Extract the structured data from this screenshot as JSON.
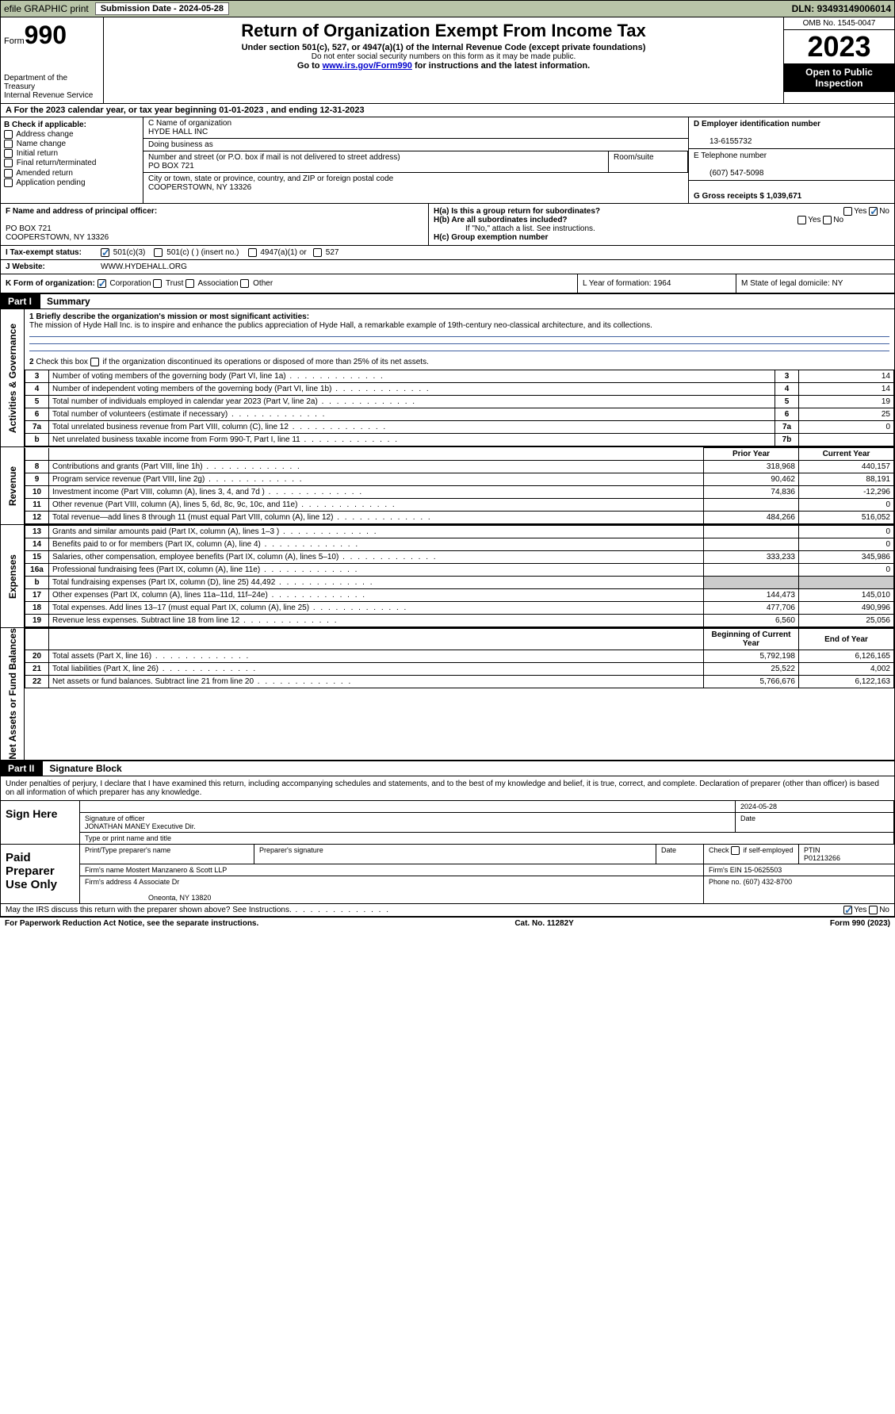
{
  "topbar": {
    "efile_label": "efile GRAPHIC print",
    "submission_label": "Submission Date - 2024-05-28",
    "dln_label": "DLN: 93493149006014"
  },
  "header": {
    "form_word": "Form",
    "form_num": "990",
    "dept": "Department of the Treasury\nInternal Revenue Service",
    "title": "Return of Organization Exempt From Income Tax",
    "sub1": "Under section 501(c), 527, or 4947(a)(1) of the Internal Revenue Code (except private foundations)",
    "sub2": "Do not enter social security numbers on this form as it may be made public.",
    "sub3_pre": "Go to ",
    "sub3_link": "www.irs.gov/Form990",
    "sub3_post": " for instructions and the latest information.",
    "omb": "OMB No. 1545-0047",
    "year": "2023",
    "inspect": "Open to Public Inspection"
  },
  "row_a": "A For the 2023 calendar year, or tax year beginning 01-01-2023     , and ending 12-31-2023",
  "col_b": {
    "hdr": "B Check if applicable:",
    "items": [
      "Address change",
      "Name change",
      "Initial return",
      "Final return/terminated",
      "Amended return",
      "Application pending"
    ]
  },
  "col_c": {
    "name_lbl": "C Name of organization",
    "name": "HYDE HALL INC",
    "dba_lbl": "Doing business as",
    "dba": "",
    "street_lbl": "Number and street (or P.O. box if mail is not delivered to street address)",
    "street": "PO BOX 721",
    "room_lbl": "Room/suite",
    "room": "",
    "city_lbl": "City or town, state or province, country, and ZIP or foreign postal code",
    "city": "COOPERSTOWN, NY  13326"
  },
  "col_d": {
    "ein_lbl": "D Employer identification number",
    "ein": "13-6155732",
    "tel_lbl": "E Telephone number",
    "tel": "(607) 547-5098",
    "gross_lbl": "G Gross receipts $ 1,039,671"
  },
  "f_block": {
    "f_lbl": "F  Name and address of principal officer:",
    "f_val": "PO BOX 721\nCOOPERSTOWN, NY  13326",
    "ha_lbl": "H(a)  Is this a group return for subordinates?",
    "ha_yes": "Yes",
    "ha_no": "No",
    "hb_lbl": "H(b)  Are all subordinates included?",
    "hb_yes": "Yes",
    "hb_no": "No",
    "hb_note": "If \"No,\" attach a list. See instructions.",
    "hc_lbl": "H(c)  Group exemption number "
  },
  "row_i": {
    "lbl": "I    Tax-exempt status:",
    "opts": [
      "501(c)(3)",
      "501(c) (  ) (insert no.)",
      "4947(a)(1) or",
      "527"
    ]
  },
  "row_j": {
    "lbl": "J    Website: ",
    "val": "WWW.HYDEHALL.ORG"
  },
  "row_k": {
    "k_lbl": "K Form of organization:",
    "k_opts": [
      "Corporation",
      "Trust",
      "Association",
      "Other"
    ],
    "l_lbl": "L Year of formation: 1964",
    "m_lbl": "M State of legal domicile: NY"
  },
  "part1": {
    "tab": "Part I",
    "title": "Summary"
  },
  "mission": {
    "line1_lbl": "1  Briefly describe the organization's mission or most significant activities:",
    "text": "The mission of Hyde Hall Inc. is to inspire and enhance the publics appreciation of Hyde Hall, a remarkable example of 19th-century neo-classical architecture, and its collections.",
    "line2": "2  Check this box     if the organization discontinued its operations or disposed of more than 25% of its net assets."
  },
  "side_labels": {
    "gov": "Activities & Governance",
    "rev": "Revenue",
    "exp": "Expenses",
    "net": "Net Assets or Fund Balances"
  },
  "gov_rows": [
    {
      "n": "3",
      "desc": "Number of voting members of the governing body (Part VI, line 1a)",
      "code": "3",
      "val": "14"
    },
    {
      "n": "4",
      "desc": "Number of independent voting members of the governing body (Part VI, line 1b)",
      "code": "4",
      "val": "14"
    },
    {
      "n": "5",
      "desc": "Total number of individuals employed in calendar year 2023 (Part V, line 2a)",
      "code": "5",
      "val": "19"
    },
    {
      "n": "6",
      "desc": "Total number of volunteers (estimate if necessary)",
      "code": "6",
      "val": "25"
    },
    {
      "n": "7a",
      "desc": "Total unrelated business revenue from Part VIII, column (C), line 12",
      "code": "7a",
      "val": "0"
    },
    {
      "n": "b",
      "desc": "Net unrelated business taxable income from Form 990-T, Part I, line 11",
      "code": "7b",
      "val": ""
    }
  ],
  "col_hdrs": {
    "prior": "Prior Year",
    "current": "Current Year",
    "begin": "Beginning of Current Year",
    "end": "End of Year"
  },
  "rev_rows": [
    {
      "n": "8",
      "desc": "Contributions and grants (Part VIII, line 1h)",
      "p": "318,968",
      "c": "440,157"
    },
    {
      "n": "9",
      "desc": "Program service revenue (Part VIII, line 2g)",
      "p": "90,462",
      "c": "88,191"
    },
    {
      "n": "10",
      "desc": "Investment income (Part VIII, column (A), lines 3, 4, and 7d )",
      "p": "74,836",
      "c": "-12,296"
    },
    {
      "n": "11",
      "desc": "Other revenue (Part VIII, column (A), lines 5, 6d, 8c, 9c, 10c, and 11e)",
      "p": "",
      "c": "0"
    },
    {
      "n": "12",
      "desc": "Total revenue—add lines 8 through 11 (must equal Part VIII, column (A), line 12)",
      "p": "484,266",
      "c": "516,052"
    }
  ],
  "exp_rows": [
    {
      "n": "13",
      "desc": "Grants and similar amounts paid (Part IX, column (A), lines 1–3 )",
      "p": "",
      "c": "0"
    },
    {
      "n": "14",
      "desc": "Benefits paid to or for members (Part IX, column (A), line 4)",
      "p": "",
      "c": "0"
    },
    {
      "n": "15",
      "desc": "Salaries, other compensation, employee benefits (Part IX, column (A), lines 5–10)",
      "p": "333,233",
      "c": "345,986"
    },
    {
      "n": "16a",
      "desc": "Professional fundraising fees (Part IX, column (A), line 11e)",
      "p": "",
      "c": "0"
    },
    {
      "n": "b",
      "desc": "Total fundraising expenses (Part IX, column (D), line 25) 44,492",
      "p": "grey",
      "c": "grey"
    },
    {
      "n": "17",
      "desc": "Other expenses (Part IX, column (A), lines 11a–11d, 11f–24e)",
      "p": "144,473",
      "c": "145,010"
    },
    {
      "n": "18",
      "desc": "Total expenses. Add lines 13–17 (must equal Part IX, column (A), line 25)",
      "p": "477,706",
      "c": "490,996"
    },
    {
      "n": "19",
      "desc": "Revenue less expenses. Subtract line 18 from line 12",
      "p": "6,560",
      "c": "25,056"
    }
  ],
  "net_rows": [
    {
      "n": "20",
      "desc": "Total assets (Part X, line 16)",
      "p": "5,792,198",
      "c": "6,126,165"
    },
    {
      "n": "21",
      "desc": "Total liabilities (Part X, line 26)",
      "p": "25,522",
      "c": "4,002"
    },
    {
      "n": "22",
      "desc": "Net assets or fund balances. Subtract line 21 from line 20",
      "p": "5,766,676",
      "c": "6,122,163"
    }
  ],
  "part2": {
    "tab": "Part II",
    "title": "Signature Block"
  },
  "sig_intro": "Under penalties of perjury, I declare that I have examined this return, including accompanying schedules and statements, and to the best of my knowledge and belief, it is true, correct, and complete. Declaration of preparer (other than officer) is based on all information of which preparer has any knowledge.",
  "sign_here": {
    "lbl": "Sign Here",
    "date": "2024-05-28",
    "sig_lbl": "Signature of officer",
    "name": "JONATHAN MANEY Executive Dir.",
    "type_lbl": "Type or print name and title",
    "date_lbl": "Date"
  },
  "paid_prep": {
    "lbl": "Paid Preparer Use Only",
    "c1": "Print/Type preparer's name",
    "c2": "Preparer's signature",
    "c3": "Date",
    "c4_pre": "Check",
    "c4_post": "if self-employed",
    "c5_lbl": "PTIN",
    "c5_val": "P01213266",
    "firm_name_lbl": "Firm's name     ",
    "firm_name": "Mostert Manzanero & Scott LLP",
    "firm_ein_lbl": "Firm's EIN  ",
    "firm_ein": "15-0625503",
    "firm_addr_lbl": "Firm's address ",
    "firm_addr": "4 Associate Dr",
    "firm_addr2": "Oneonta, NY  13820",
    "phone_lbl": "Phone no. ",
    "phone": "(607) 432-8700"
  },
  "discuss": {
    "q": "May the IRS discuss this return with the preparer shown above? See Instructions.",
    "yes": "Yes",
    "no": "No"
  },
  "footer": {
    "left": "For Paperwork Reduction Act Notice, see the separate instructions.",
    "mid": "Cat. No. 11282Y",
    "right": "Form 990 (2023)"
  }
}
